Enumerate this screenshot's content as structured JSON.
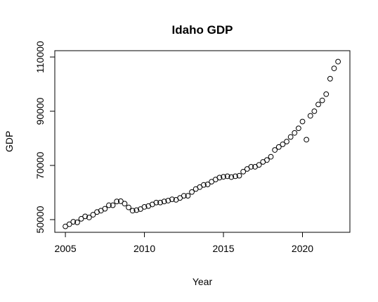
{
  "chart_data": {
    "type": "scatter",
    "title": "Idaho GDP",
    "x_label": "Year",
    "y_label": "GDP",
    "x": [
      2005,
      2005.25,
      2005.5,
      2005.75,
      2006,
      2006.25,
      2006.5,
      2006.75,
      2007,
      2007.25,
      2007.5,
      2007.75,
      2008,
      2008.25,
      2008.5,
      2008.75,
      2009,
      2009.25,
      2009.5,
      2009.75,
      2010,
      2010.25,
      2010.5,
      2010.75,
      2011,
      2011.25,
      2011.5,
      2011.75,
      2012,
      2012.25,
      2012.5,
      2012.75,
      2013,
      2013.25,
      2013.5,
      2013.75,
      2014,
      2014.25,
      2014.5,
      2014.75,
      2015,
      2015.25,
      2015.5,
      2015.75,
      2016,
      2016.25,
      2016.5,
      2016.75,
      2017,
      2017.25,
      2017.5,
      2017.75,
      2018,
      2018.25,
      2018.5,
      2018.75,
      2019,
      2019.25,
      2019.5,
      2019.75,
      2020,
      2020.25,
      2020.5,
      2020.75,
      2021,
      2021.25,
      2021.5,
      2021.75,
      2022,
      2022.25
    ],
    "values": [
      47500,
      48300,
      49200,
      49000,
      50300,
      51200,
      50800,
      51800,
      52800,
      53300,
      54000,
      55300,
      55300,
      56700,
      56800,
      55900,
      54500,
      53300,
      53500,
      53900,
      54700,
      55000,
      55600,
      56300,
      56300,
      56700,
      57000,
      57500,
      57300,
      58000,
      58800,
      58800,
      60200,
      61300,
      62000,
      62800,
      63000,
      64000,
      64800,
      65500,
      65800,
      66000,
      65700,
      66000,
      66200,
      67700,
      68700,
      69500,
      69500,
      70200,
      71300,
      72000,
      73200,
      75700,
      76800,
      77800,
      78800,
      80500,
      82000,
      83700,
      86200,
      79500,
      88300,
      90000,
      92500,
      94000,
      96300,
      102000,
      105800,
      108300
    ],
    "color": "#000000",
    "xlim": [
      2004.33,
      2023.0
    ],
    "ylim": [
      45320,
      112340
    ],
    "xticks": [
      2005,
      2010,
      2015,
      2020
    ],
    "yticks": [
      50000,
      70000,
      90000,
      110000
    ]
  }
}
